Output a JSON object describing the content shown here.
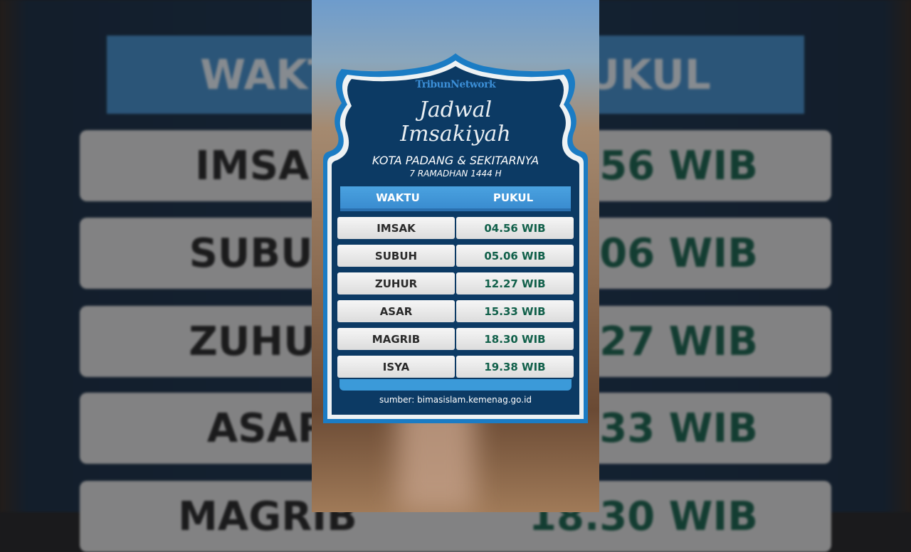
{
  "brand": "TribunNetwork",
  "title_line1": "Jadwal",
  "title_line2": "Imsakiyah",
  "location": "KOTA PADANG & SEKITARNYA",
  "date": "7 RAMADHAN 1444 H",
  "table": {
    "headers": [
      "WAKTU",
      "PUKUL"
    ],
    "rows": [
      {
        "waktu": "IMSAK",
        "pukul": "04.56 WIB"
      },
      {
        "waktu": "SUBUH",
        "pukul": "05.06 WIB"
      },
      {
        "waktu": "ZUHUR",
        "pukul": "12.27 WIB"
      },
      {
        "waktu": "ASAR",
        "pukul": "15.33 WIB"
      },
      {
        "waktu": "MAGRIB",
        "pukul": "18.30 WIB"
      },
      {
        "waktu": "ISYA",
        "pukul": "19.38 WIB"
      }
    ]
  },
  "source": "sumber: bimasislam.kemenag.go.id",
  "colors": {
    "card": "#0c3a64",
    "accent": "#3b9ad9",
    "time_text": "#11604a"
  }
}
